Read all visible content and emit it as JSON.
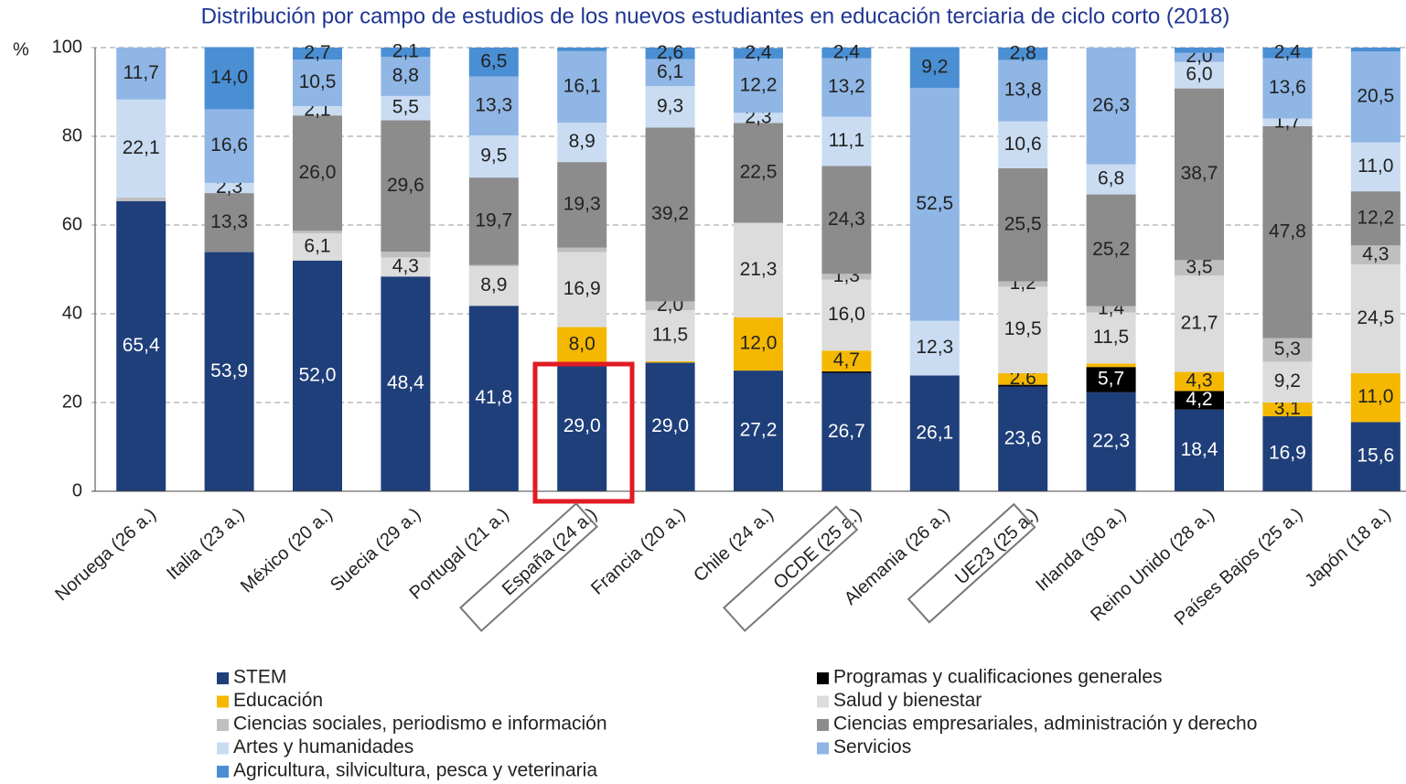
{
  "chart_data": {
    "type": "stacked_bar",
    "title": "Distribución por campo de estudios de los nuevos estudiantes en educación terciaria de ciclo corto (2018)",
    "y_label": "%",
    "categories": [
      "Noruega (26 a.)",
      "Italia (23 a.)",
      "México (20 a.)",
      "Suecia (29 a.)",
      "Portugal (21 a.)",
      "España (24 a.)",
      "Francia (20 a.)",
      "Chile (24 a.)",
      "OCDE  (25 a.)",
      "Alemania (26 a.)",
      "UE23 (25 a.)",
      "Irlanda (30 a.)",
      "Reino Unido (28 a.)",
      "Países Bajos (25 a.)",
      "Japón (18 a.)"
    ],
    "ylim": [
      0,
      100
    ],
    "yticks": [
      0,
      20,
      40,
      60,
      80,
      100
    ],
    "grid": true,
    "series": [
      {
        "name": "STEM",
        "color": "#1f3f7a",
        "values": [
          65.4,
          53.9,
          52.0,
          48.4,
          41.8,
          29.0,
          29.0,
          27.2,
          26.7,
          26.1,
          23.6,
          22.3,
          18.4,
          16.9,
          15.6
        ],
        "value_labels": [
          "65,4",
          "53,9",
          "52,0",
          "48,4",
          "41,8",
          "29,0",
          "29,0",
          "27,2",
          "26,7",
          "26,1",
          "23,6",
          "22,3",
          "18,4",
          "16,9",
          "15,6"
        ]
      },
      {
        "name": "Programas y cualificaciones generales",
        "color": "#000000",
        "values": [
          0,
          0,
          0,
          0,
          0,
          0,
          0,
          0,
          0.3,
          0,
          0.4,
          5.7,
          4.2,
          0,
          0
        ],
        "value_labels": [
          null,
          null,
          null,
          null,
          null,
          null,
          null,
          null,
          null,
          null,
          null,
          "5,7",
          "4,2",
          null,
          null
        ]
      },
      {
        "name": "Educación",
        "color": "#f5b800",
        "values": [
          0,
          0,
          0,
          0,
          0,
          8.0,
          0.3,
          12.0,
          4.7,
          0,
          2.6,
          0.8,
          4.3,
          3.1,
          11.0
        ],
        "value_labels": [
          null,
          null,
          null,
          null,
          null,
          "8,0",
          null,
          "12,0",
          "4,7",
          null,
          "2,6",
          null,
          "4,3",
          "3,1",
          "11,0"
        ]
      },
      {
        "name": "Salud y bienestar",
        "color": "#dcdcdc",
        "values": [
          0,
          0,
          6.1,
          4.3,
          8.9,
          16.9,
          11.5,
          21.3,
          16.0,
          0,
          19.5,
          11.5,
          21.7,
          9.2,
          24.5
        ],
        "value_labels": [
          null,
          null,
          "6,1",
          "4,3",
          "8,9",
          "16,9",
          "11,5",
          "21,3",
          "16,0",
          null,
          "19,5",
          "11,5",
          "21,7",
          "9,2",
          "24,5"
        ]
      },
      {
        "name": "Ciencias sociales, periodismo e información",
        "color": "#bfbfbf",
        "values": [
          0.8,
          0,
          0.6,
          1.3,
          0.3,
          1.0,
          2.0,
          0,
          1.3,
          0,
          1.2,
          1.4,
          3.5,
          5.3,
          4.3
        ],
        "value_labels": [
          null,
          null,
          null,
          null,
          null,
          null,
          "2,0",
          null,
          "1,3",
          null,
          "1,2",
          "1,4",
          "3,5",
          "5,3",
          "4,3"
        ]
      },
      {
        "name": "Ciencias empresariales, administración y derecho",
        "color": "#8c8c8c",
        "values": [
          0,
          13.3,
          26.0,
          29.6,
          19.7,
          19.3,
          39.2,
          22.5,
          24.3,
          0,
          25.5,
          25.2,
          38.7,
          47.8,
          12.2
        ],
        "value_labels": [
          null,
          "13,3",
          "26,0",
          "29,6",
          "19,7",
          "19,3",
          "39,2",
          "22,5",
          "24,3",
          null,
          "25,5",
          "25,2",
          "38,7",
          "47,8",
          "12,2"
        ]
      },
      {
        "name": "Artes y humanidades",
        "color": "#c9dcf2",
        "values": [
          22.1,
          2.3,
          2.1,
          5.5,
          9.5,
          8.9,
          9.3,
          2.3,
          11.1,
          12.3,
          10.6,
          6.8,
          6.0,
          1.7,
          11.0
        ],
        "value_labels": [
          "22,1",
          "2,3",
          "2,1",
          "5,5",
          "9,5",
          "8,9",
          "9,3",
          "2,3",
          "11,1",
          "12,3",
          "10,6",
          "6,8",
          "6,0",
          "1,7",
          "11,0"
        ]
      },
      {
        "name": "Servicios",
        "color": "#8fb6e5",
        "values": [
          11.7,
          16.6,
          10.5,
          8.8,
          13.3,
          16.1,
          6.1,
          12.2,
          13.2,
          52.5,
          13.8,
          26.3,
          2.0,
          13.6,
          20.5
        ],
        "value_labels": [
          "11,7",
          "16,6",
          "10,5",
          "8,8",
          "13,3",
          "16,1",
          "6,1",
          "12,2",
          "13,2",
          "52,5",
          "13,8",
          "26,3",
          "2,0",
          "13,6",
          "20,5"
        ]
      },
      {
        "name": "Agricultura, silvicultura, pesca y veterinaria",
        "color": "#4a8fd4",
        "values": [
          0,
          14.0,
          2.7,
          2.1,
          6.5,
          0.8,
          2.6,
          2.4,
          2.4,
          9.2,
          2.8,
          0,
          1.2,
          2.4,
          0.9
        ],
        "value_labels": [
          null,
          "14,0",
          "2,7",
          "2,1",
          "6,5",
          null,
          "2,6",
          "2,4",
          "2,4",
          "9,2",
          "2,8",
          null,
          null,
          "2,4",
          null
        ]
      }
    ]
  }
}
